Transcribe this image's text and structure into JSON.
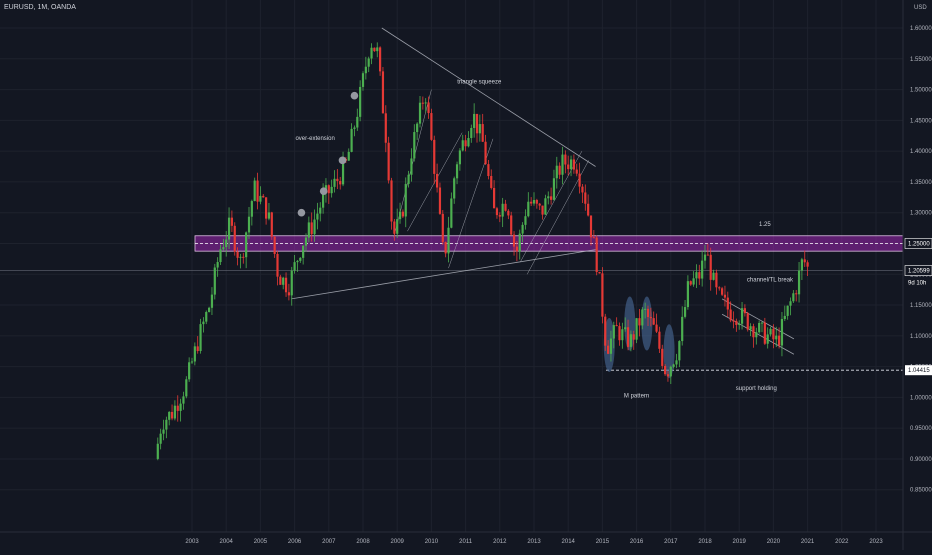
{
  "header": {
    "symbol_title": "EURUSD, 1M, OANDA",
    "currency": "USD"
  },
  "chart_data": {
    "type": "candlestick",
    "background": "#131722",
    "colors": {
      "up": "#4caf50",
      "down": "#e53935",
      "zone": "#9c27b0",
      "pattern": "#4a6a9a",
      "lines": "#b2b5be"
    },
    "ylim": [
      0.85,
      1.65
    ],
    "y_ticks": [
      1.6,
      1.55,
      1.5,
      1.45,
      1.4,
      1.35,
      1.3,
      1.25,
      1.2,
      1.15,
      1.1,
      1.05,
      1.0,
      0.95,
      0.9,
      0.85
    ],
    "y_tick_labels": [
      "1.60000",
      "1.55000",
      "1.50000",
      "1.45000",
      "1.40000",
      "1.35000",
      "1.30000",
      "1.25000",
      "1.20000",
      "1.15000",
      "1.10000",
      "1.05000",
      "1.00000",
      "0.95000",
      "0.90000",
      "0.85000"
    ],
    "x_ticks": [
      2003,
      2004,
      2005,
      2006,
      2007,
      2008,
      2009,
      2010,
      2011,
      2012,
      2013,
      2014,
      2015,
      2016,
      2017,
      2018,
      2019,
      2020,
      2021,
      2022,
      2023
    ],
    "x_tick_labels": [
      "2003",
      "2004",
      "2005",
      "2006",
      "2007",
      "2008",
      "2009",
      "2010",
      "2011",
      "2012",
      "2013",
      "2014",
      "2015",
      "2016",
      "2017",
      "2018",
      "2019",
      "2020",
      "2021",
      "2022",
      "2023"
    ],
    "x_range": [
      2002.0,
      2023.9
    ],
    "path": [
      [
        2002.0,
        0.9
      ],
      [
        2002.2,
        0.96
      ],
      [
        2002.5,
        0.975
      ],
      [
        2002.9,
        1.02
      ],
      [
        2003.3,
        1.1
      ],
      [
        2003.6,
        1.15
      ],
      [
        2003.9,
        1.24
      ],
      [
        2004.2,
        1.28
      ],
      [
        2004.5,
        1.22
      ],
      [
        2004.9,
        1.34
      ],
      [
        2005.3,
        1.3
      ],
      [
        2005.6,
        1.2
      ],
      [
        2005.9,
        1.18
      ],
      [
        2006.3,
        1.25
      ],
      [
        2006.6,
        1.28
      ],
      [
        2006.9,
        1.32
      ],
      [
        2007.3,
        1.35
      ],
      [
        2007.6,
        1.38
      ],
      [
        2007.9,
        1.46
      ],
      [
        2008.3,
        1.58
      ],
      [
        2008.5,
        1.56
      ],
      [
        2008.8,
        1.4
      ],
      [
        2008.95,
        1.26
      ],
      [
        2009.2,
        1.29
      ],
      [
        2009.5,
        1.4
      ],
      [
        2009.9,
        1.5
      ],
      [
        2010.2,
        1.36
      ],
      [
        2010.45,
        1.22
      ],
      [
        2010.8,
        1.38
      ],
      [
        2011.3,
        1.46
      ],
      [
        2011.6,
        1.41
      ],
      [
        2011.9,
        1.3
      ],
      [
        2012.3,
        1.32
      ],
      [
        2012.55,
        1.23
      ],
      [
        2012.9,
        1.32
      ],
      [
        2013.3,
        1.3
      ],
      [
        2013.6,
        1.34
      ],
      [
        2013.9,
        1.38
      ],
      [
        2014.3,
        1.385
      ],
      [
        2014.6,
        1.32
      ],
      [
        2014.95,
        1.21
      ],
      [
        2015.2,
        1.08
      ],
      [
        2015.5,
        1.11
      ],
      [
        2015.9,
        1.09
      ],
      [
        2016.3,
        1.14
      ],
      [
        2016.6,
        1.11
      ],
      [
        2016.95,
        1.04
      ],
      [
        2017.3,
        1.08
      ],
      [
        2017.6,
        1.18
      ],
      [
        2017.95,
        1.2
      ],
      [
        2018.1,
        1.24
      ],
      [
        2018.4,
        1.17
      ],
      [
        2018.8,
        1.14
      ],
      [
        2019.2,
        1.13
      ],
      [
        2019.6,
        1.11
      ],
      [
        2019.9,
        1.1
      ],
      [
        2020.2,
        1.09
      ],
      [
        2020.5,
        1.14
      ],
      [
        2020.75,
        1.18
      ],
      [
        2020.95,
        1.225
      ],
      [
        2021.08,
        1.21
      ]
    ],
    "zone": {
      "top": 1.2625,
      "bottom": 1.2375,
      "mid": 1.25
    },
    "support_level": 1.04415,
    "trendlines": [
      {
        "name": "upper-trendline",
        "points": [
          [
            2008.55,
            1.6
          ],
          [
            2014.8,
            1.375
          ]
        ]
      },
      {
        "name": "lower-trendline",
        "points": [
          [
            2005.9,
            1.16
          ],
          [
            2014.8,
            1.24
          ]
        ]
      },
      {
        "name": "channel-upper",
        "points": [
          [
            2018.5,
            1.16
          ],
          [
            2020.6,
            1.095
          ]
        ]
      },
      {
        "name": "channel-lower",
        "points": [
          [
            2018.5,
            1.135
          ],
          [
            2020.6,
            1.07
          ]
        ]
      },
      {
        "name": "pitchfork-line-1",
        "points": [
          [
            2008.9,
            1.26
          ],
          [
            2010.0,
            1.5
          ]
        ]
      },
      {
        "name": "pitchfork-line-2",
        "points": [
          [
            2009.3,
            1.27
          ],
          [
            2010.9,
            1.43
          ]
        ]
      },
      {
        "name": "pitchfork-line-3",
        "points": [
          [
            2010.5,
            1.21
          ],
          [
            2011.8,
            1.42
          ]
        ]
      },
      {
        "name": "pitchfork-line-4",
        "points": [
          [
            2012.6,
            1.22
          ],
          [
            2014.4,
            1.4
          ]
        ]
      },
      {
        "name": "pitchfork-line-5",
        "points": [
          [
            2012.8,
            1.2
          ],
          [
            2014.6,
            1.385
          ]
        ]
      }
    ],
    "dots": [
      [
        2006.2,
        1.3
      ],
      [
        2006.85,
        1.335
      ],
      [
        2007.4,
        1.385
      ],
      [
        2007.75,
        1.49
      ]
    ],
    "m_pattern_ovals": [
      [
        2015.2,
        1.085
      ],
      [
        2015.8,
        1.12
      ],
      [
        2016.3,
        1.12
      ],
      [
        2016.95,
        1.075
      ]
    ],
    "annotations": [
      {
        "text": "triangle squeeze",
        "x": 2011.4,
        "y": 1.51
      },
      {
        "text": "over-extension",
        "x": 2006.6,
        "y": 1.418
      },
      {
        "text": "1.25",
        "x": 2019.75,
        "y": 1.278
      },
      {
        "text": "channel/TL break",
        "x": 2019.9,
        "y": 1.188
      },
      {
        "text": "M pattern",
        "x": 2016.0,
        "y": 1.0
      },
      {
        "text": "support holding",
        "x": 2019.5,
        "y": 1.012
      }
    ],
    "price_labels": {
      "zone_label": "1.25000",
      "current_price": "1.20599",
      "countdown": "9d 10h",
      "support_label": "1.04415"
    },
    "current_price_value": 1.20599
  }
}
